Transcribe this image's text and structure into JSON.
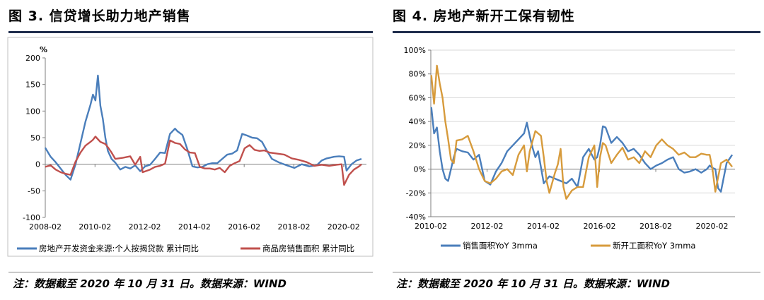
{
  "figures": [
    {
      "title": "图 3. 信贷增长助力地产销售",
      "note": "注：数据截至 2020 年 10 月 31 日。数据来源：WIND"
    },
    {
      "title": "图 4. 房地产新开工保有韧性",
      "note": "注：数据截至 2020 年 10 月 31 日。数据来源：WIND"
    }
  ],
  "chart_data": [
    {
      "type": "line",
      "title": "",
      "unit_label": "%",
      "xlabel": "",
      "ylabel": "",
      "ylim": [
        -100,
        200
      ],
      "yticks": [
        "200",
        "150",
        "100",
        "50",
        "0",
        "-50",
        "-100"
      ],
      "xlim": [
        2008.0833,
        2021.0
      ],
      "xticks": [
        {
          "label": "2008-02",
          "value": 2008.0833
        },
        {
          "label": "2010-02",
          "value": 2010.0833
        },
        {
          "label": "2012-02",
          "value": 2012.0833
        },
        {
          "label": "2014-02",
          "value": 2014.0833
        },
        {
          "label": "2016-02",
          "value": 2016.0833
        },
        {
          "label": "2018-02",
          "value": 2018.0833
        },
        {
          "label": "2020-02",
          "value": 2020.0833
        }
      ],
      "grid": false,
      "legend": "bottom",
      "series": [
        {
          "name": "房地产开发资金来源:个人按揭贷款 累计同比",
          "color": "#4a7ebb",
          "x": [
            2008.08,
            2008.3,
            2008.5,
            2008.7,
            2008.9,
            2009.1,
            2009.3,
            2009.5,
            2009.7,
            2009.9,
            2010.0,
            2010.1,
            2010.2,
            2010.3,
            2010.4,
            2010.5,
            2010.6,
            2010.75,
            2010.9,
            2011.1,
            2011.3,
            2011.5,
            2011.7,
            2011.9,
            2012.1,
            2012.3,
            2012.5,
            2012.7,
            2012.9,
            2013.1,
            2013.3,
            2013.4,
            2013.6,
            2013.8,
            2014.0,
            2014.2,
            2014.4,
            2014.6,
            2014.8,
            2015.0,
            2015.2,
            2015.4,
            2015.6,
            2015.8,
            2016.0,
            2016.2,
            2016.4,
            2016.6,
            2016.8,
            2017.0,
            2017.2,
            2017.5,
            2017.8,
            2018.1,
            2018.4,
            2018.7,
            2019.0,
            2019.2,
            2019.4,
            2019.7,
            2019.9,
            2020.1,
            2020.2,
            2020.4,
            2020.6,
            2020.8
          ],
          "y": [
            31,
            14,
            4,
            -8,
            -20,
            -29,
            0,
            40,
            80,
            112,
            131,
            120,
            167,
            110,
            85,
            50,
            25,
            10,
            3,
            -10,
            -5,
            -8,
            -2,
            -13,
            -4,
            -1,
            10,
            22,
            21,
            57,
            67,
            62,
            55,
            28,
            -4,
            -6,
            -5,
            0,
            2,
            2,
            10,
            18,
            20,
            26,
            57,
            54,
            50,
            49,
            42,
            25,
            10,
            3,
            -2,
            -7,
            0,
            -4,
            -2,
            7,
            11,
            14,
            15,
            14,
            -12,
            0,
            7,
            10
          ]
        },
        {
          "name": "商品房销售面积 累计同比",
          "color": "#c0504d",
          "x": [
            2008.08,
            2008.3,
            2008.5,
            2008.7,
            2008.9,
            2009.1,
            2009.3,
            2009.5,
            2009.7,
            2009.9,
            2010.0,
            2010.1,
            2010.3,
            2010.5,
            2010.6,
            2010.75,
            2010.9,
            2011.2,
            2011.5,
            2011.7,
            2011.9,
            2012.0,
            2012.3,
            2012.5,
            2012.7,
            2012.9,
            2013.1,
            2013.3,
            2013.5,
            2013.7,
            2013.9,
            2014.1,
            2014.3,
            2014.5,
            2014.7,
            2014.9,
            2015.1,
            2015.3,
            2015.5,
            2015.7,
            2015.9,
            2016.1,
            2016.3,
            2016.5,
            2016.7,
            2016.9,
            2017.1,
            2017.4,
            2017.7,
            2018.0,
            2018.3,
            2018.6,
            2018.9,
            2019.2,
            2019.5,
            2019.8,
            2020.0,
            2020.1,
            2020.3,
            2020.5,
            2020.7,
            2020.8
          ],
          "y": [
            -5,
            -2,
            -10,
            -15,
            -18,
            -20,
            5,
            22,
            35,
            42,
            46,
            52,
            42,
            38,
            32,
            22,
            10,
            12,
            15,
            -1,
            14,
            -15,
            -10,
            -5,
            -3,
            1,
            45,
            40,
            38,
            28,
            22,
            21,
            -5,
            -8,
            -8,
            -10,
            -7,
            -15,
            -3,
            2,
            6,
            30,
            36,
            27,
            25,
            26,
            22,
            20,
            18,
            11,
            8,
            4,
            -3,
            -1,
            -3,
            -1,
            0,
            -39,
            -20,
            -10,
            -4,
            0
          ]
        }
      ]
    },
    {
      "type": "line",
      "title": "",
      "xlabel": "",
      "ylabel": "",
      "ylim": [
        -40,
        100
      ],
      "yticks": [
        "100%",
        "80%",
        "60%",
        "40%",
        "20%",
        "0%",
        "-20%",
        "-40%"
      ],
      "xlim": [
        2010.0833,
        2020.9
      ],
      "xticks": [
        {
          "label": "2010-02",
          "value": 2010.0833
        },
        {
          "label": "2012-02",
          "value": 2012.0833
        },
        {
          "label": "2014-02",
          "value": 2014.0833
        },
        {
          "label": "2016-02",
          "value": 2016.0833
        },
        {
          "label": "2018-02",
          "value": 2018.0833
        },
        {
          "label": "2020-02",
          "value": 2020.0833
        }
      ],
      "grid": true,
      "legend": "bottom",
      "series": [
        {
          "name": "销售面积YoY 3mma",
          "color": "#4a7ebb",
          "x": [
            2010.1,
            2010.2,
            2010.3,
            2010.4,
            2010.5,
            2010.6,
            2010.7,
            2010.8,
            2010.9,
            2011.0,
            2011.2,
            2011.4,
            2011.6,
            2011.8,
            2012.0,
            2012.2,
            2012.4,
            2012.6,
            2012.8,
            2013.0,
            2013.2,
            2013.4,
            2013.5,
            2013.6,
            2013.7,
            2013.8,
            2013.9,
            2014.1,
            2014.3,
            2014.5,
            2014.7,
            2014.9,
            2015.1,
            2015.3,
            2015.5,
            2015.7,
            2015.9,
            2016.0,
            2016.1,
            2016.2,
            2016.3,
            2016.5,
            2016.7,
            2016.9,
            2017.1,
            2017.3,
            2017.5,
            2017.7,
            2017.9,
            2018.1,
            2018.3,
            2018.5,
            2018.7,
            2018.9,
            2019.1,
            2019.3,
            2019.5,
            2019.7,
            2019.9,
            2020.0,
            2020.1,
            2020.2,
            2020.3,
            2020.4,
            2020.6,
            2020.8
          ],
          "y": [
            52,
            30,
            35,
            15,
            0,
            -8,
            -10,
            0,
            10,
            17,
            15,
            14,
            8,
            12,
            -10,
            -13,
            -2,
            5,
            15,
            20,
            25,
            30,
            39,
            28,
            18,
            10,
            15,
            -12,
            -6,
            -8,
            -10,
            -12,
            -8,
            -15,
            10,
            17,
            8,
            10,
            20,
            36,
            35,
            22,
            27,
            22,
            15,
            17,
            12,
            5,
            0,
            3,
            5,
            8,
            10,
            0,
            -3,
            -2,
            0,
            -3,
            0,
            3,
            1,
            0,
            -16,
            -19,
            5,
            12
          ]
        },
        {
          "name": "新开工面积YoY 3mma",
          "color": "#d79b3c",
          "x": [
            2010.1,
            2010.2,
            2010.3,
            2010.4,
            2010.5,
            2010.6,
            2010.7,
            2010.8,
            2010.9,
            2011.0,
            2011.2,
            2011.4,
            2011.6,
            2011.8,
            2012.0,
            2012.2,
            2012.4,
            2012.6,
            2012.8,
            2013.0,
            2013.2,
            2013.4,
            2013.5,
            2013.6,
            2013.8,
            2014.0,
            2014.1,
            2014.2,
            2014.3,
            2014.5,
            2014.6,
            2014.7,
            2014.8,
            2014.9,
            2015.1,
            2015.3,
            2015.5,
            2015.7,
            2015.9,
            2016.0,
            2016.1,
            2016.2,
            2016.3,
            2016.5,
            2016.7,
            2016.9,
            2017.1,
            2017.3,
            2017.5,
            2017.7,
            2017.9,
            2018.1,
            2018.3,
            2018.5,
            2018.7,
            2018.9,
            2019.1,
            2019.3,
            2019.5,
            2019.7,
            2019.9,
            2020.0,
            2020.1,
            2020.2,
            2020.3,
            2020.4,
            2020.6,
            2020.8
          ],
          "y": [
            79,
            55,
            87,
            72,
            60,
            40,
            25,
            8,
            5,
            24,
            25,
            28,
            15,
            0,
            -10,
            -12,
            -8,
            -2,
            0,
            -5,
            12,
            20,
            -2,
            15,
            32,
            28,
            10,
            -10,
            -20,
            -3,
            4,
            17,
            -15,
            -25,
            -18,
            -15,
            -15,
            10,
            20,
            -15,
            10,
            22,
            20,
            5,
            12,
            18,
            8,
            10,
            5,
            15,
            10,
            20,
            25,
            20,
            17,
            12,
            14,
            10,
            10,
            13,
            12,
            12,
            0,
            -19,
            -7,
            5,
            8,
            2
          ]
        }
      ]
    }
  ]
}
